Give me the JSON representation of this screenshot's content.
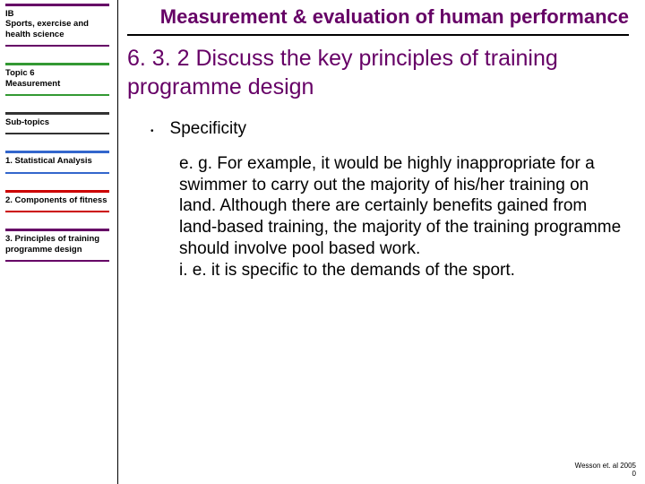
{
  "colors": {
    "accent": "#660066",
    "green": "#339933",
    "blue": "#3366cc",
    "red": "#cc0000",
    "dark": "#333333"
  },
  "sidebar": {
    "ib": "IB",
    "course": "Sports, exercise and health science",
    "topic_num": "Topic 6",
    "topic_name": "Measurement",
    "subtopics_label": "Sub-topics",
    "item1": "1. Statistical Analysis",
    "item2": "2. Components of fitness",
    "item3": "3. Principles of training programme design"
  },
  "main": {
    "title": "Measurement & evaluation of human performance",
    "heading": "6. 3. 2 Discuss the key principles of training programme design",
    "bullet": "Specificity",
    "para1": "e. g. For example, it would be highly inappropriate for a swimmer to carry out the majority of his/her training on land. Although there are certainly benefits gained from land-based training, the majority of the training programme should involve pool based work.",
    "para2": "i. e. it is specific to the demands of the sport."
  },
  "footer": {
    "ref": "Wesson et. al 2005",
    "page": "0"
  }
}
